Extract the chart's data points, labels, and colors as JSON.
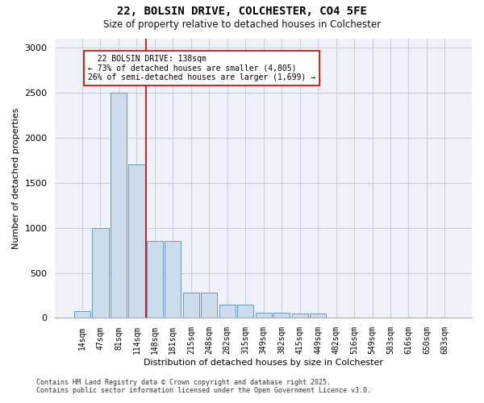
{
  "title1": "22, BOLSIN DRIVE, COLCHESTER, CO4 5FE",
  "title2": "Size of property relative to detached houses in Colchester",
  "xlabel": "Distribution of detached houses by size in Colchester",
  "ylabel": "Number of detached properties",
  "categories": [
    "14sqm",
    "47sqm",
    "81sqm",
    "114sqm",
    "148sqm",
    "181sqm",
    "215sqm",
    "248sqm",
    "282sqm",
    "315sqm",
    "349sqm",
    "382sqm",
    "415sqm",
    "449sqm",
    "482sqm",
    "516sqm",
    "549sqm",
    "583sqm",
    "616sqm",
    "650sqm",
    "683sqm"
  ],
  "values": [
    75,
    1000,
    2500,
    1700,
    850,
    850,
    280,
    280,
    150,
    150,
    55,
    55,
    50,
    50,
    5,
    5,
    0,
    0,
    0,
    0,
    0
  ],
  "bar_color": "#ccdcec",
  "bar_edge_color": "#6699bb",
  "smaller_pct": 73,
  "smaller_count": 4805,
  "larger_pct": 26,
  "larger_count": 1699,
  "property_size": 138,
  "vline_color": "#cc0000",
  "annotation_box_color": "#ffffff",
  "annotation_box_edge": "#cc0000",
  "ylim": [
    0,
    3100
  ],
  "yticks": [
    0,
    500,
    1000,
    1500,
    2000,
    2500,
    3000
  ],
  "footer1": "Contains HM Land Registry data © Crown copyright and database right 2025.",
  "footer2": "Contains public sector information licensed under the Open Government Licence v3.0.",
  "bg_color": "#eef2f8"
}
